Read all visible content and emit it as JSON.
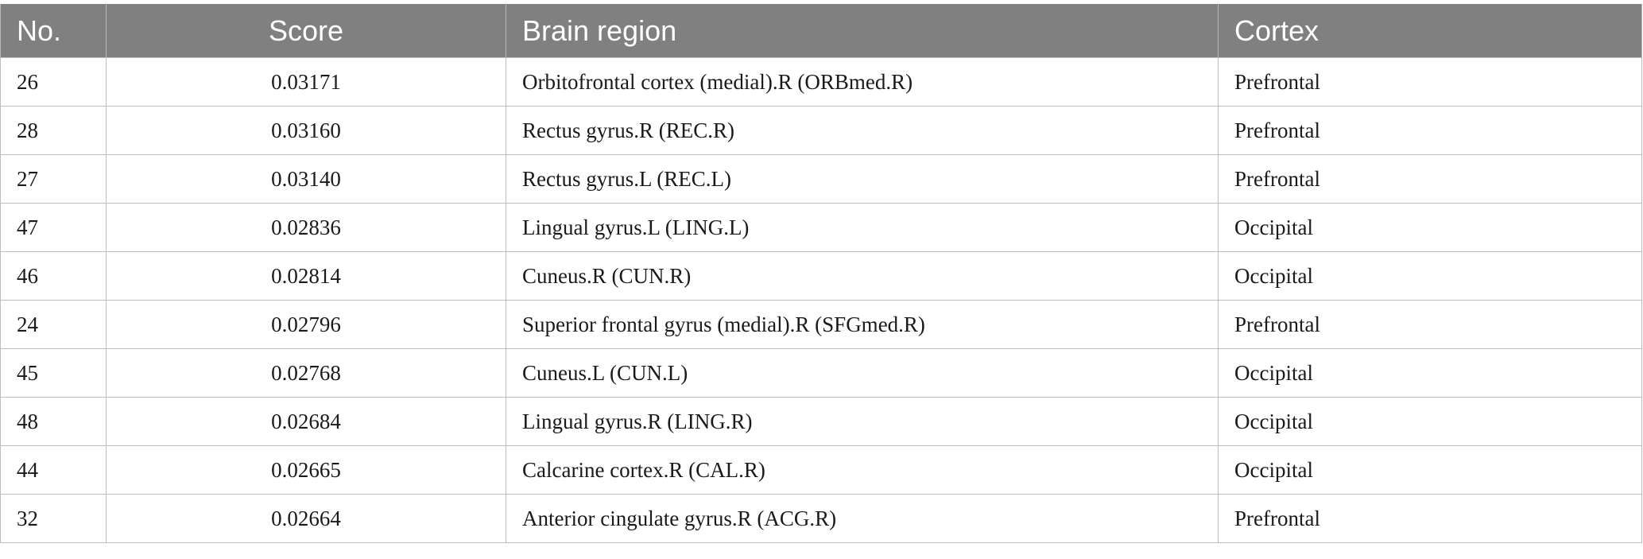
{
  "table": {
    "headers": {
      "no": "No.",
      "score": "Score",
      "region": "Brain region",
      "cortex": "Cortex"
    },
    "rows": [
      {
        "no": "26",
        "score": "0.03171",
        "region": "Orbitofrontal cortex (medial).R (ORBmed.R)",
        "cortex": "Prefrontal"
      },
      {
        "no": "28",
        "score": "0.03160",
        "region": "Rectus gyrus.R (REC.R)",
        "cortex": "Prefrontal"
      },
      {
        "no": "27",
        "score": "0.03140",
        "region": "Rectus gyrus.L (REC.L)",
        "cortex": "Prefrontal"
      },
      {
        "no": "47",
        "score": "0.02836",
        "region": "Lingual gyrus.L (LING.L)",
        "cortex": "Occipital"
      },
      {
        "no": "46",
        "score": "0.02814",
        "region": "Cuneus.R (CUN.R)",
        "cortex": "Occipital"
      },
      {
        "no": "24",
        "score": "0.02796",
        "region": "Superior frontal gyrus (medial).R (SFGmed.R)",
        "cortex": "Prefrontal"
      },
      {
        "no": "45",
        "score": "0.02768",
        "region": "Cuneus.L (CUN.L)",
        "cortex": "Occipital"
      },
      {
        "no": "48",
        "score": "0.02684",
        "region": "Lingual gyrus.R (LING.R)",
        "cortex": "Occipital"
      },
      {
        "no": "44",
        "score": "0.02665",
        "region": "Calcarine cortex.R (CAL.R)",
        "cortex": "Occipital"
      },
      {
        "no": "32",
        "score": "0.02664",
        "region": "Anterior cingulate gyrus.R (ACG.R)",
        "cortex": "Prefrontal"
      }
    ]
  },
  "colors": {
    "header_bg": "#808080",
    "header_text": "#ffffff",
    "grid": "#bdbdbd"
  }
}
